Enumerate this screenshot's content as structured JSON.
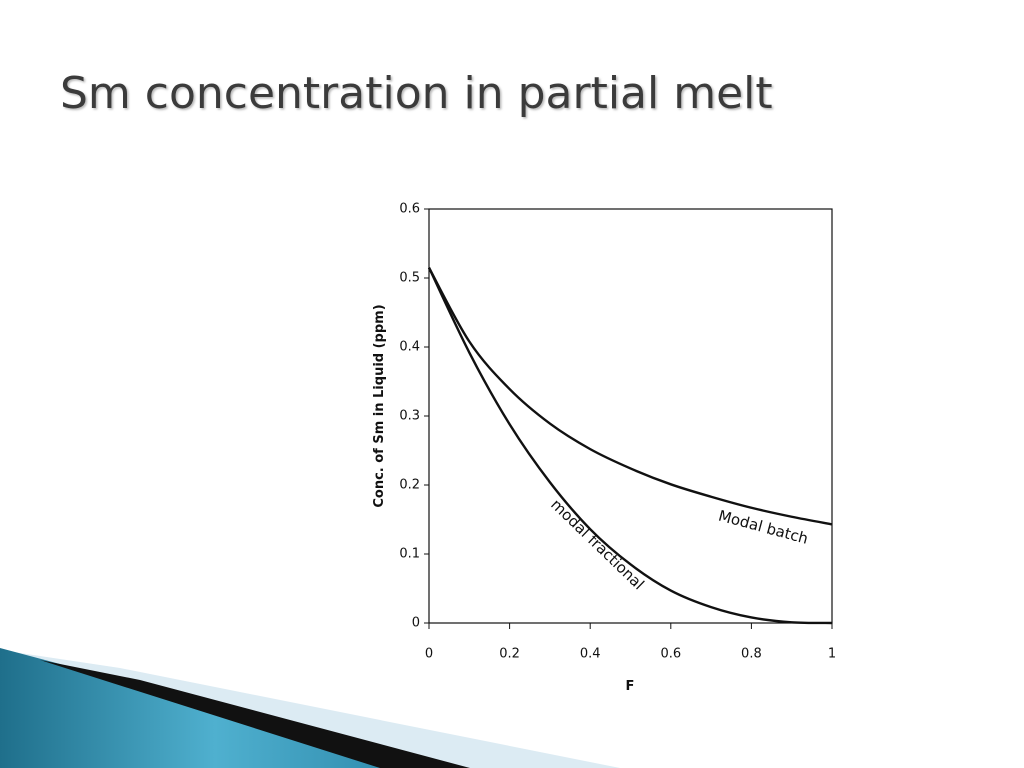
{
  "chart_data": {
    "type": "line",
    "title": "Sm concentration in partial melt",
    "x_label": "F",
    "y_label": "Conc. of Sm in Liquid (ppm)",
    "x": [
      0,
      0.1,
      0.2,
      0.3,
      0.4,
      0.5,
      0.6,
      0.7,
      0.8,
      0.9,
      1
    ],
    "series": [
      {
        "name": "Modal batch",
        "color": "#111111",
        "values": [
          0.515,
          0.408,
          0.339,
          0.289,
          0.252,
          0.224,
          0.201,
          0.183,
          0.167,
          0.154,
          0.143
        ]
      },
      {
        "name": "modal fractional",
        "color": "#111111",
        "values": [
          0.515,
          0.392,
          0.288,
          0.204,
          0.136,
          0.085,
          0.047,
          0.023,
          0.008,
          0.001,
          0
        ]
      }
    ],
    "xlim": [
      0,
      1
    ],
    "ylim": [
      0,
      0.6
    ],
    "xticks": [
      0,
      0.2,
      0.4,
      0.6,
      0.8,
      1
    ],
    "yticks": [
      0,
      0.1,
      0.2,
      0.3,
      0.4,
      0.5,
      0.6
    ]
  }
}
